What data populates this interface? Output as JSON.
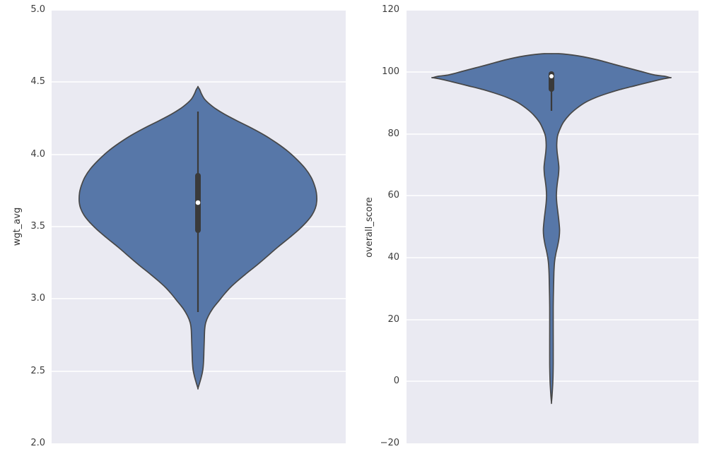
{
  "figure": {
    "background": "#ffffff",
    "panel_background": "#eaeaf2",
    "grid_color": "#ffffff",
    "violin_fill": "#5777a8",
    "violin_edge": "#474747",
    "inner_box_color": "#3a3a3a",
    "median_dot_color": "#ffffff",
    "tick_color": "#3d3d3d"
  },
  "chart_data": [
    {
      "type": "violin",
      "orientation": "vertical",
      "title": "",
      "xlabel": "",
      "ylabel": "wgt_avg",
      "ylim": [
        2.0,
        5.0
      ],
      "yticks": [
        "5.0",
        "4.5",
        "4.0",
        "3.5",
        "3.0",
        "2.5",
        "2.0"
      ],
      "grid": true,
      "legend": false,
      "summary": {
        "kde_min": 2.38,
        "kde_max": 4.47,
        "median": 3.67,
        "q1": 3.46,
        "q3": 3.87,
        "whisker_low": 2.91,
        "whisker_high": 4.3,
        "widest_density_at": 3.7
      }
    },
    {
      "type": "violin",
      "orientation": "vertical",
      "title": "",
      "xlabel": "",
      "ylabel": "overall_score",
      "ylim": [
        -20,
        120
      ],
      "yticks": [
        "120",
        "100",
        "80",
        "60",
        "40",
        "20",
        "0",
        "−20"
      ],
      "grid": true,
      "legend": false,
      "summary": {
        "kde_min": -7,
        "kde_max": 106,
        "median": 99,
        "q1": 93.5,
        "q3": 100,
        "whisker_low": 88,
        "whisker_high": 100,
        "widest_density_at": 99,
        "secondary_bumps_at": [
          70,
          47
        ]
      }
    }
  ]
}
